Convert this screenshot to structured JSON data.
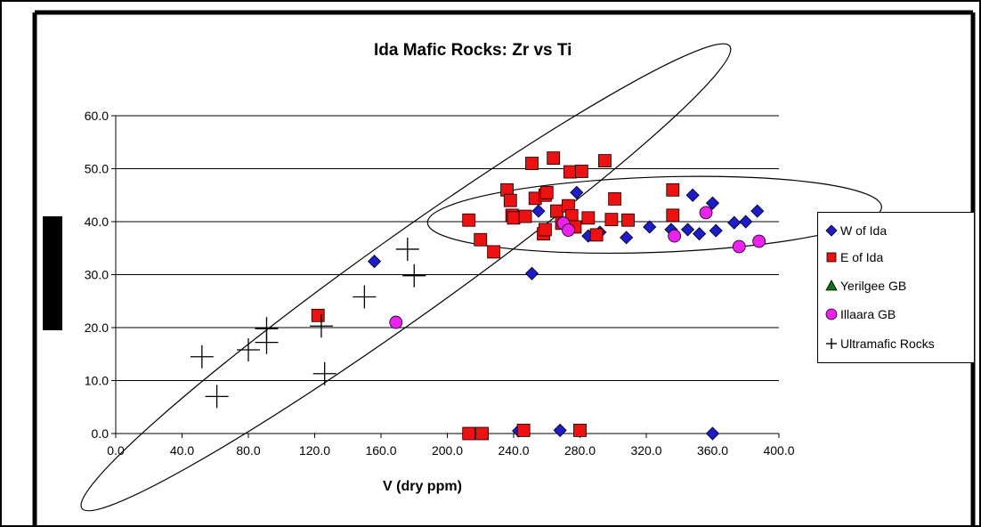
{
  "chart_data": {
    "type": "scatter",
    "title": "Ida Mafic Rocks: Zr vs Ti",
    "xlabel": "V (dry ppm)",
    "ylabel": "",
    "xlim": [
      0,
      400
    ],
    "ylim": [
      0,
      60
    ],
    "xticks": [
      "0.0",
      "40.0",
      "80.0",
      "120.0",
      "160.0",
      "200.0",
      "240.0",
      "280.0",
      "320.0",
      "360.0",
      "400.0"
    ],
    "yticks": [
      "0.0",
      "10.0",
      "20.0",
      "30.0",
      "40.0",
      "50.0",
      "60.0"
    ],
    "grid": "horizontal",
    "legend_position": "right",
    "series": [
      {
        "name": "W of Ida",
        "marker": "diamond",
        "color": "#1c1ccc",
        "points": [
          [
            156,
            32.5
          ],
          [
            251,
            30.2
          ],
          [
            255,
            42
          ],
          [
            272,
            43
          ],
          [
            278,
            45.5
          ],
          [
            285,
            37.3
          ],
          [
            292,
            38
          ],
          [
            308,
            37
          ],
          [
            322,
            39
          ],
          [
            335,
            38.5
          ],
          [
            345,
            38.5
          ],
          [
            348,
            45
          ],
          [
            352,
            37.7
          ],
          [
            360,
            43.5
          ],
          [
            362,
            38.3
          ],
          [
            373,
            39.8
          ],
          [
            380,
            40
          ],
          [
            387,
            42
          ],
          [
            243,
            0.5
          ],
          [
            268,
            0.6
          ],
          [
            360,
            0
          ]
        ]
      },
      {
        "name": "E of Ida",
        "marker": "square",
        "color": "#ee1111",
        "points": [
          [
            213,
            40.3
          ],
          [
            220,
            36.6
          ],
          [
            228,
            34.3
          ],
          [
            236,
            46
          ],
          [
            238,
            44
          ],
          [
            239,
            41.2
          ],
          [
            240,
            40.7
          ],
          [
            247,
            41
          ],
          [
            251,
            51
          ],
          [
            253,
            44.4
          ],
          [
            258,
            37.7
          ],
          [
            259,
            38.5
          ],
          [
            259,
            45
          ],
          [
            260,
            45.5
          ],
          [
            264,
            52
          ],
          [
            266,
            42
          ],
          [
            269,
            39.7
          ],
          [
            273,
            43
          ],
          [
            274,
            49.4
          ],
          [
            275,
            41.1
          ],
          [
            277,
            39
          ],
          [
            281,
            49.5
          ],
          [
            285,
            40.7
          ],
          [
            290,
            37.5
          ],
          [
            295,
            51.5
          ],
          [
            299,
            40.4
          ],
          [
            301,
            44.3
          ],
          [
            309,
            40.3
          ],
          [
            336,
            46
          ],
          [
            336,
            41.2
          ],
          [
            122,
            22.3
          ],
          [
            213,
            0
          ],
          [
            221,
            0
          ],
          [
            246,
            0.6
          ],
          [
            280,
            0.6
          ]
        ]
      },
      {
        "name": "Yerilgee GB",
        "marker": "triangle",
        "color": "#147014",
        "points": []
      },
      {
        "name": "Illaara GB",
        "marker": "circle",
        "color": "#ee22ee",
        "points": [
          [
            169,
            21
          ],
          [
            270,
            39.7
          ],
          [
            273,
            38.4
          ],
          [
            337,
            37.3
          ],
          [
            356,
            41.7
          ],
          [
            376,
            35.3
          ],
          [
            388,
            36.3
          ]
        ]
      },
      {
        "name": "Ultramafic Rocks",
        "marker": "plus",
        "color": "#000000",
        "points": [
          [
            52,
            14.5
          ],
          [
            61,
            7
          ],
          [
            80,
            15.8
          ],
          [
            91,
            19.8
          ],
          [
            91,
            17.2
          ],
          [
            124,
            20.3
          ],
          [
            126,
            11.3
          ],
          [
            150,
            25.8
          ],
          [
            176,
            34.8
          ],
          [
            180,
            29.8
          ]
        ]
      }
    ],
    "ellipses": [
      {
        "cx": 175,
        "cy": 29.5,
        "rx": 240,
        "ry": 7.7,
        "angle_deg": -35.5
      },
      {
        "cx": 325,
        "cy": 41.3,
        "rx": 137,
        "ry": 7.1,
        "angle_deg": -2
      }
    ]
  }
}
